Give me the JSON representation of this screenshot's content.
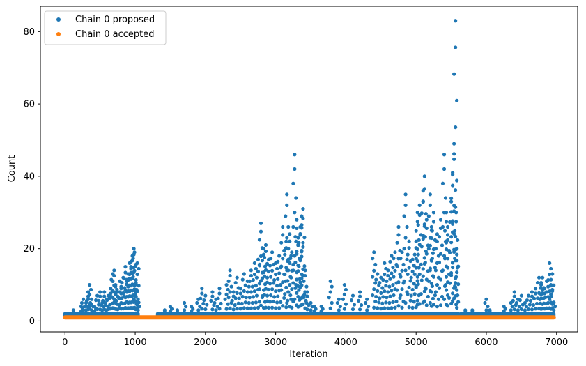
{
  "chart_data": {
    "type": "scatter",
    "xlabel": "Iteration",
    "ylabel": "Count",
    "xlim": [
      -350,
      7300
    ],
    "ylim": [
      -3,
      87
    ],
    "x_ticks": [
      0,
      1000,
      2000,
      3000,
      4000,
      5000,
      6000,
      7000
    ],
    "y_ticks": [
      0,
      20,
      40,
      60,
      80
    ],
    "legend_position": "top-left",
    "series": [
      {
        "name": "Chain 0 proposed",
        "color": "#1f77b4",
        "points": [
          [
            0,
            1
          ],
          [
            30,
            2
          ],
          [
            80,
            1
          ],
          [
            120,
            3
          ],
          [
            180,
            2
          ],
          [
            230,
            4
          ],
          [
            260,
            6
          ],
          [
            300,
            5
          ],
          [
            330,
            8
          ],
          [
            350,
            10
          ],
          [
            380,
            6
          ],
          [
            420,
            4
          ],
          [
            460,
            7
          ],
          [
            500,
            8
          ],
          [
            530,
            5
          ],
          [
            560,
            8
          ],
          [
            590,
            6
          ],
          [
            620,
            7
          ],
          [
            650,
            9
          ],
          [
            680,
            13
          ],
          [
            700,
            14
          ],
          [
            720,
            10
          ],
          [
            750,
            8
          ],
          [
            780,
            11
          ],
          [
            800,
            9
          ],
          [
            830,
            12
          ],
          [
            860,
            15
          ],
          [
            880,
            11
          ],
          [
            900,
            13
          ],
          [
            920,
            16
          ],
          [
            940,
            15
          ],
          [
            960,
            18
          ],
          [
            980,
            20
          ],
          [
            990,
            19
          ],
          [
            1000,
            10
          ],
          [
            1010,
            8
          ],
          [
            1030,
            16
          ],
          [
            1040,
            6
          ],
          [
            1350,
            2
          ],
          [
            1420,
            3
          ],
          [
            1500,
            4
          ],
          [
            1600,
            3
          ],
          [
            1700,
            5
          ],
          [
            1800,
            4
          ],
          [
            1900,
            6
          ],
          [
            1950,
            9
          ],
          [
            2000,
            7
          ],
          [
            2100,
            8
          ],
          [
            2150,
            6
          ],
          [
            2200,
            9
          ],
          [
            2300,
            10
          ],
          [
            2350,
            14
          ],
          [
            2400,
            8
          ],
          [
            2450,
            12
          ],
          [
            2500,
            9
          ],
          [
            2550,
            13
          ],
          [
            2600,
            11
          ],
          [
            2650,
            14
          ],
          [
            2700,
            16
          ],
          [
            2750,
            17
          ],
          [
            2790,
            27
          ],
          [
            2830,
            20
          ],
          [
            2860,
            21
          ],
          [
            2900,
            17
          ],
          [
            2950,
            19
          ],
          [
            3000,
            16
          ],
          [
            3050,
            18
          ],
          [
            3100,
            26
          ],
          [
            3150,
            22
          ],
          [
            3160,
            35
          ],
          [
            3200,
            24
          ],
          [
            3230,
            19
          ],
          [
            3270,
            46
          ],
          [
            3300,
            28
          ],
          [
            3320,
            23
          ],
          [
            3350,
            26
          ],
          [
            3370,
            29
          ],
          [
            3390,
            31
          ],
          [
            3420,
            14
          ],
          [
            3450,
            8
          ],
          [
            3500,
            5
          ],
          [
            3550,
            4
          ],
          [
            3650,
            4
          ],
          [
            3780,
            11
          ],
          [
            3900,
            6
          ],
          [
            3980,
            10
          ],
          [
            4100,
            7
          ],
          [
            4200,
            8
          ],
          [
            4300,
            6
          ],
          [
            4400,
            19
          ],
          [
            4450,
            13
          ],
          [
            4500,
            12
          ],
          [
            4550,
            16
          ],
          [
            4600,
            14
          ],
          [
            4650,
            18
          ],
          [
            4700,
            19
          ],
          [
            4750,
            26
          ],
          [
            4800,
            19
          ],
          [
            4850,
            35
          ],
          [
            4900,
            22
          ],
          [
            4950,
            17
          ],
          [
            5000,
            22
          ],
          [
            5020,
            30
          ],
          [
            5050,
            32
          ],
          [
            5100,
            36
          ],
          [
            5120,
            40
          ],
          [
            5150,
            28
          ],
          [
            5200,
            35
          ],
          [
            5220,
            25
          ],
          [
            5250,
            30
          ],
          [
            5300,
            24
          ],
          [
            5350,
            28
          ],
          [
            5400,
            46
          ],
          [
            5430,
            30
          ],
          [
            5450,
            26
          ],
          [
            5500,
            33
          ],
          [
            5520,
            41
          ],
          [
            5540,
            49
          ],
          [
            5560,
            83
          ],
          [
            5570,
            30
          ],
          [
            5580,
            20
          ],
          [
            5600,
            2
          ],
          [
            5700,
            3
          ],
          [
            5800,
            3
          ],
          [
            5900,
            2
          ],
          [
            6000,
            6
          ],
          [
            6050,
            3
          ],
          [
            6150,
            2
          ],
          [
            6250,
            4
          ],
          [
            6350,
            5
          ],
          [
            6400,
            8
          ],
          [
            6450,
            6
          ],
          [
            6500,
            7
          ],
          [
            6550,
            5
          ],
          [
            6600,
            7
          ],
          [
            6650,
            8
          ],
          [
            6700,
            9
          ],
          [
            6750,
            12
          ],
          [
            6780,
            10
          ],
          [
            6800,
            12
          ],
          [
            6830,
            9
          ],
          [
            6860,
            11
          ],
          [
            6900,
            16
          ],
          [
            6920,
            10
          ],
          [
            6940,
            13
          ],
          [
            6960,
            5
          ]
        ]
      },
      {
        "name": "Chain 0 accepted",
        "color": "#ff7f0e",
        "points": [
          [
            0,
            1
          ],
          [
            6960,
            1
          ]
        ]
      }
    ]
  }
}
